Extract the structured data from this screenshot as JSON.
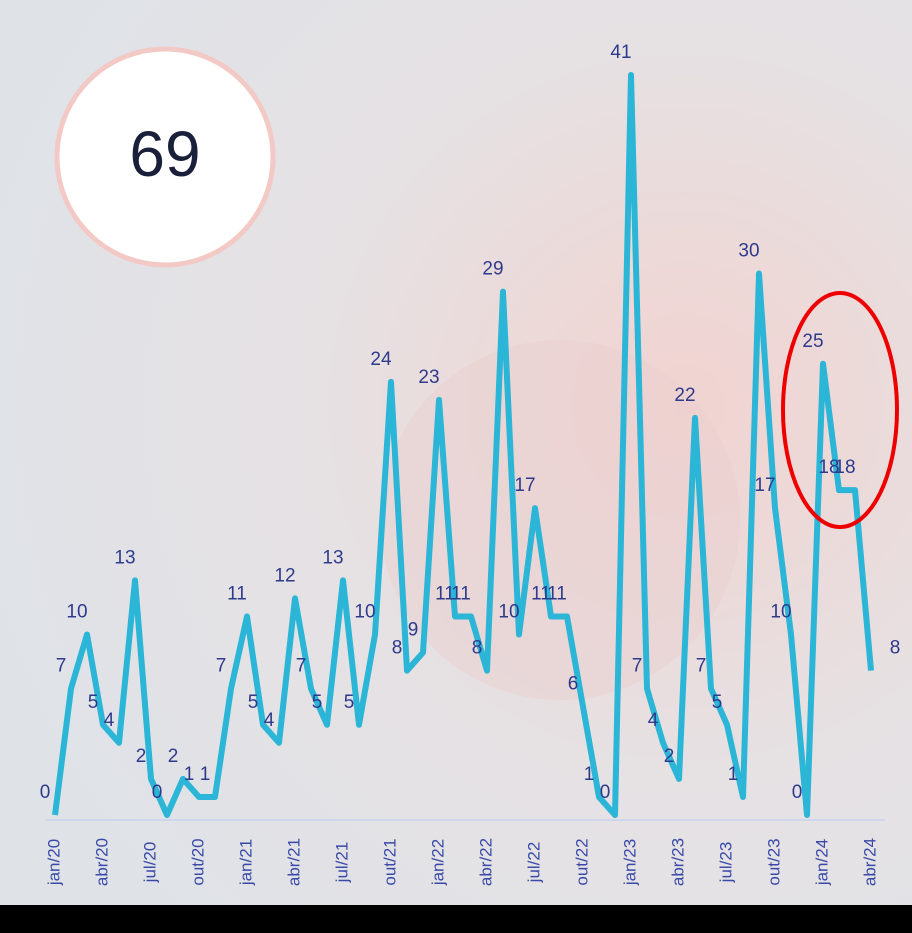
{
  "chart_data": {
    "type": "line",
    "annotation": "69",
    "categories": [
      "jan/20",
      null,
      null,
      "abr/20",
      null,
      null,
      "jul/20",
      null,
      null,
      "out/20",
      null,
      null,
      "jan/21",
      null,
      null,
      "abr/21",
      null,
      null,
      "jul/21",
      null,
      null,
      "out/21",
      null,
      null,
      "jan/22",
      null,
      null,
      "abr/22",
      null,
      null,
      "jul/22",
      null,
      null,
      "out/22",
      null,
      null,
      "jan/23",
      null,
      null,
      "abr/23",
      null,
      null,
      "jul/23",
      null,
      null,
      "out/23",
      null,
      null,
      "jan/24",
      null,
      null,
      "abr/24"
    ],
    "series": [
      {
        "color": "#2bb5d6",
        "values": [
          0,
          7,
          10,
          5,
          4,
          13,
          2,
          0,
          2,
          1,
          1,
          7,
          11,
          5,
          4,
          12,
          7,
          5,
          13,
          5,
          10,
          24,
          8,
          9,
          23,
          11,
          11,
          8,
          29,
          10,
          17,
          11,
          11,
          6,
          1,
          0,
          41,
          7,
          4,
          2,
          22,
          7,
          5,
          1,
          30,
          17,
          10,
          0,
          25,
          18,
          18,
          8
        ]
      }
    ],
    "ylim": [
      0,
      41
    ]
  }
}
